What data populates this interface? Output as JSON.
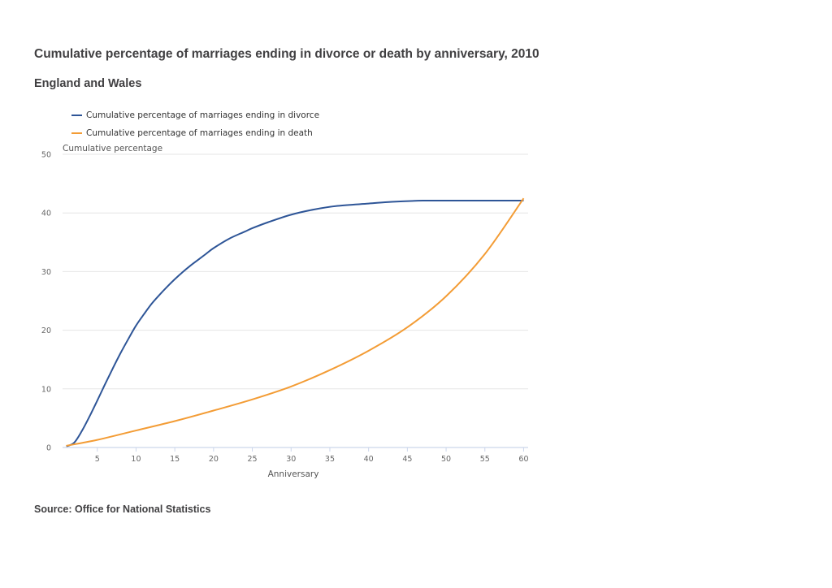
{
  "title": "Cumulative percentage of marriages ending in divorce or death by anniversary, 2010",
  "subtitle": "England and Wales",
  "source": "Source: Office for National Statistics",
  "legend": [
    {
      "label": "Cumulative percentage of marriages ending in divorce",
      "color": "#2e5597"
    },
    {
      "label": "Cumulative percentage of marriages ending in death",
      "color": "#f39c35"
    }
  ],
  "chart_data": {
    "type": "line",
    "title": "Cumulative percentage of marriages ending in divorce or death by anniversary, 2010",
    "subtitle": "England and Wales",
    "xlabel": "Anniversary",
    "ylabel": "Cumulative percentage",
    "xlim": [
      1,
      60
    ],
    "ylim": [
      0,
      50
    ],
    "x_ticks": [
      5,
      10,
      15,
      20,
      25,
      30,
      35,
      40,
      45,
      50,
      55,
      60
    ],
    "y_ticks": [
      0,
      10,
      20,
      30,
      40,
      50
    ],
    "grid": "horizontal",
    "legend_position": "top-left",
    "series": [
      {
        "name": "Cumulative percentage of marriages ending in divorce",
        "color": "#2e5597",
        "x": [
          1,
          2,
          3,
          4,
          5,
          6,
          7,
          8,
          9,
          10,
          11,
          12,
          13,
          14,
          15,
          16,
          17,
          18,
          19,
          20,
          22,
          24,
          25,
          27,
          30,
          33,
          36,
          40,
          43,
          47,
          50,
          55,
          60
        ],
        "values": [
          0.2,
          0.8,
          2.8,
          5.3,
          8.0,
          10.8,
          13.5,
          16.1,
          18.5,
          20.8,
          22.7,
          24.5,
          26.0,
          27.4,
          28.7,
          29.9,
          31.0,
          32.0,
          33.0,
          34.0,
          35.6,
          36.8,
          37.4,
          38.4,
          39.7,
          40.6,
          41.2,
          41.6,
          41.9,
          42.1,
          42.1,
          42.1,
          42.1
        ]
      },
      {
        "name": "Cumulative percentage of marriages ending in death",
        "color": "#f39c35",
        "x": [
          1,
          5,
          10,
          15,
          20,
          25,
          30,
          35,
          40,
          45,
          50,
          55,
          60
        ],
        "values": [
          0.3,
          1.3,
          2.9,
          4.5,
          6.3,
          8.2,
          10.4,
          13.2,
          16.5,
          20.5,
          25.8,
          33.0,
          42.5
        ]
      }
    ]
  }
}
